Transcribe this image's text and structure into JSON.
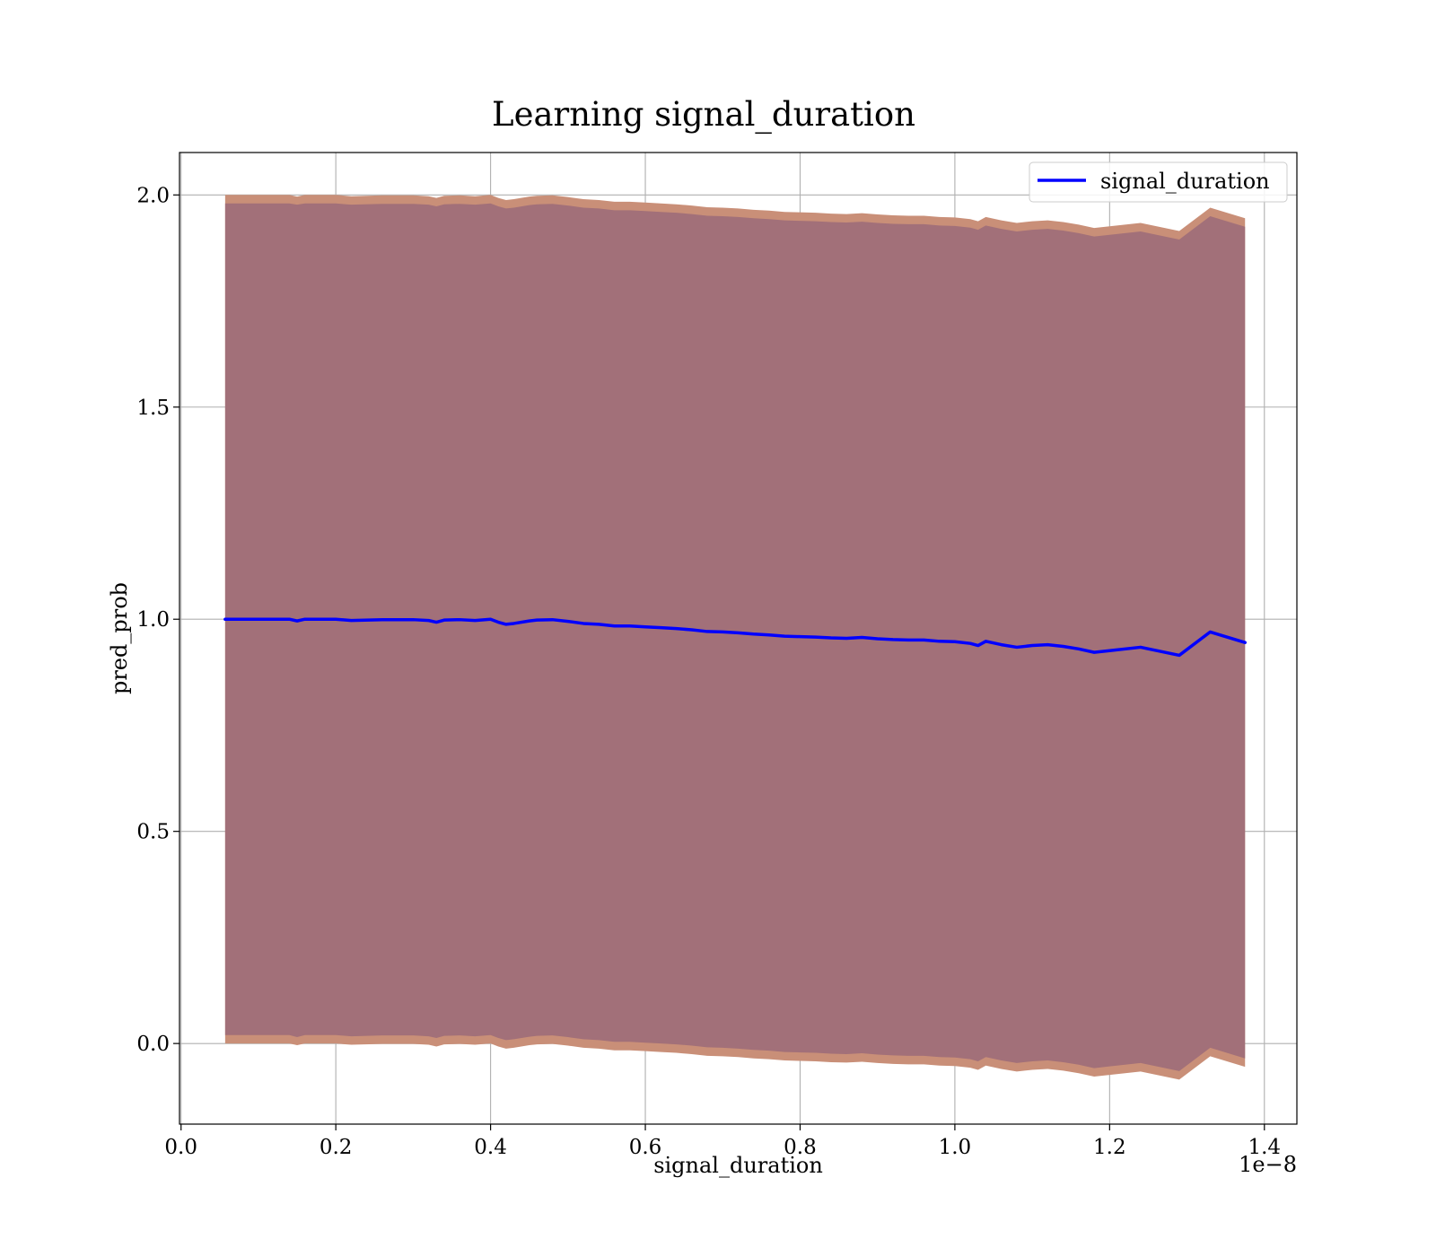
{
  "chart_data": {
    "type": "line",
    "title": "Learning signal_duration",
    "xlabel": "signal_duration",
    "ylabel": "pred_prob",
    "x_offset_label": "1e−8",
    "xlim": [
      -0.002,
      1.442
    ],
    "ylim": [
      -0.19,
      2.1
    ],
    "xticks": [
      0.0,
      0.2,
      0.4,
      0.6,
      0.8,
      1.0,
      1.2,
      1.4
    ],
    "xtick_labels": [
      "0.0",
      "0.2",
      "0.4",
      "0.6",
      "0.8",
      "1.0",
      "1.2",
      "1.4"
    ],
    "yticks": [
      0.0,
      0.5,
      1.0,
      1.5,
      2.0
    ],
    "ytick_labels": [
      "0.0",
      "0.5",
      "1.0",
      "1.5",
      "2.0"
    ],
    "grid": true,
    "legend_position": "top-right",
    "colors": {
      "line": "#0000ff",
      "inner_band": "#a27079",
      "outer_band": "#c98f78"
    },
    "series": [
      {
        "name": "signal_duration",
        "x": [
          0.057,
          0.08,
          0.1,
          0.12,
          0.14,
          0.15,
          0.16,
          0.2,
          0.22,
          0.26,
          0.3,
          0.32,
          0.33,
          0.34,
          0.36,
          0.38,
          0.4,
          0.41,
          0.42,
          0.43,
          0.45,
          0.46,
          0.48,
          0.5,
          0.52,
          0.54,
          0.56,
          0.58,
          0.6,
          0.62,
          0.64,
          0.66,
          0.68,
          0.7,
          0.72,
          0.74,
          0.76,
          0.78,
          0.8,
          0.82,
          0.84,
          0.86,
          0.88,
          0.9,
          0.92,
          0.94,
          0.96,
          0.98,
          1.0,
          1.02,
          1.03,
          1.04,
          1.06,
          1.08,
          1.1,
          1.12,
          1.14,
          1.16,
          1.18,
          1.2,
          1.24,
          1.29,
          1.33,
          1.375
        ],
        "y": [
          1.0,
          1.0,
          1.0,
          1.0,
          1.0,
          0.996,
          1.0,
          1.0,
          0.997,
          0.999,
          0.999,
          0.997,
          0.993,
          0.998,
          0.999,
          0.997,
          1.0,
          0.993,
          0.988,
          0.99,
          0.996,
          0.998,
          0.999,
          0.995,
          0.99,
          0.988,
          0.984,
          0.984,
          0.982,
          0.98,
          0.978,
          0.975,
          0.971,
          0.97,
          0.968,
          0.965,
          0.963,
          0.96,
          0.959,
          0.958,
          0.956,
          0.955,
          0.957,
          0.954,
          0.952,
          0.951,
          0.951,
          0.948,
          0.947,
          0.943,
          0.938,
          0.948,
          0.94,
          0.934,
          0.938,
          0.94,
          0.936,
          0.93,
          0.922,
          0.926,
          0.934,
          0.915,
          0.97,
          0.945
        ],
        "inner_band": {
          "upper": [
            1.98,
            1.98,
            1.98,
            1.98,
            1.98,
            1.977,
            1.98,
            1.98,
            1.977,
            1.979,
            1.979,
            1.977,
            1.973,
            1.978,
            1.979,
            1.977,
            1.98,
            1.973,
            1.968,
            1.97,
            1.976,
            1.978,
            1.979,
            1.975,
            1.97,
            1.968,
            1.964,
            1.964,
            1.962,
            1.96,
            1.958,
            1.955,
            1.951,
            1.95,
            1.948,
            1.945,
            1.943,
            1.94,
            1.939,
            1.938,
            1.936,
            1.935,
            1.937,
            1.934,
            1.932,
            1.931,
            1.931,
            1.928,
            1.927,
            1.923,
            1.918,
            1.928,
            1.92,
            1.914,
            1.918,
            1.92,
            1.916,
            1.91,
            1.902,
            1.906,
            1.914,
            1.895,
            1.95,
            1.925
          ],
          "lower": [
            0.02,
            0.02,
            0.02,
            0.02,
            0.02,
            0.015,
            0.02,
            0.02,
            0.017,
            0.019,
            0.019,
            0.017,
            0.013,
            0.018,
            0.019,
            0.017,
            0.02,
            0.013,
            0.008,
            0.01,
            0.016,
            0.018,
            0.019,
            0.015,
            0.01,
            0.008,
            0.004,
            0.004,
            0.002,
            0.0,
            -0.002,
            -0.005,
            -0.009,
            -0.01,
            -0.012,
            -0.015,
            -0.017,
            -0.02,
            -0.021,
            -0.022,
            -0.024,
            -0.025,
            -0.023,
            -0.026,
            -0.028,
            -0.029,
            -0.029,
            -0.032,
            -0.033,
            -0.037,
            -0.042,
            -0.032,
            -0.04,
            -0.046,
            -0.042,
            -0.04,
            -0.044,
            -0.05,
            -0.058,
            -0.054,
            -0.046,
            -0.065,
            -0.01,
            -0.035
          ]
        },
        "outer_band": {
          "upper": [
            2.0,
            2.0,
            2.0,
            2.0,
            2.0,
            1.996,
            2.0,
            2.0,
            1.997,
            1.999,
            1.999,
            1.997,
            1.993,
            1.998,
            1.999,
            1.997,
            2.0,
            1.993,
            1.988,
            1.99,
            1.996,
            1.998,
            1.999,
            1.995,
            1.99,
            1.988,
            1.984,
            1.984,
            1.982,
            1.98,
            1.978,
            1.975,
            1.971,
            1.97,
            1.968,
            1.965,
            1.963,
            1.96,
            1.959,
            1.958,
            1.956,
            1.955,
            1.957,
            1.954,
            1.952,
            1.951,
            1.951,
            1.948,
            1.947,
            1.943,
            1.938,
            1.948,
            1.94,
            1.934,
            1.938,
            1.94,
            1.936,
            1.93,
            1.922,
            1.926,
            1.934,
            1.915,
            1.97,
            1.945
          ],
          "lower": [
            0.0,
            0.0,
            0.0,
            0.0,
            0.0,
            -0.004,
            0.0,
            0.0,
            -0.003,
            -0.001,
            -0.001,
            -0.003,
            -0.007,
            -0.002,
            -0.001,
            -0.003,
            0.0,
            -0.007,
            -0.012,
            -0.01,
            -0.004,
            -0.002,
            -0.001,
            -0.005,
            -0.01,
            -0.012,
            -0.016,
            -0.016,
            -0.018,
            -0.02,
            -0.022,
            -0.025,
            -0.029,
            -0.03,
            -0.032,
            -0.035,
            -0.037,
            -0.04,
            -0.041,
            -0.042,
            -0.044,
            -0.045,
            -0.043,
            -0.046,
            -0.048,
            -0.049,
            -0.049,
            -0.052,
            -0.053,
            -0.057,
            -0.062,
            -0.052,
            -0.06,
            -0.066,
            -0.062,
            -0.06,
            -0.064,
            -0.07,
            -0.078,
            -0.074,
            -0.066,
            -0.085,
            -0.03,
            -0.055
          ]
        }
      }
    ]
  }
}
